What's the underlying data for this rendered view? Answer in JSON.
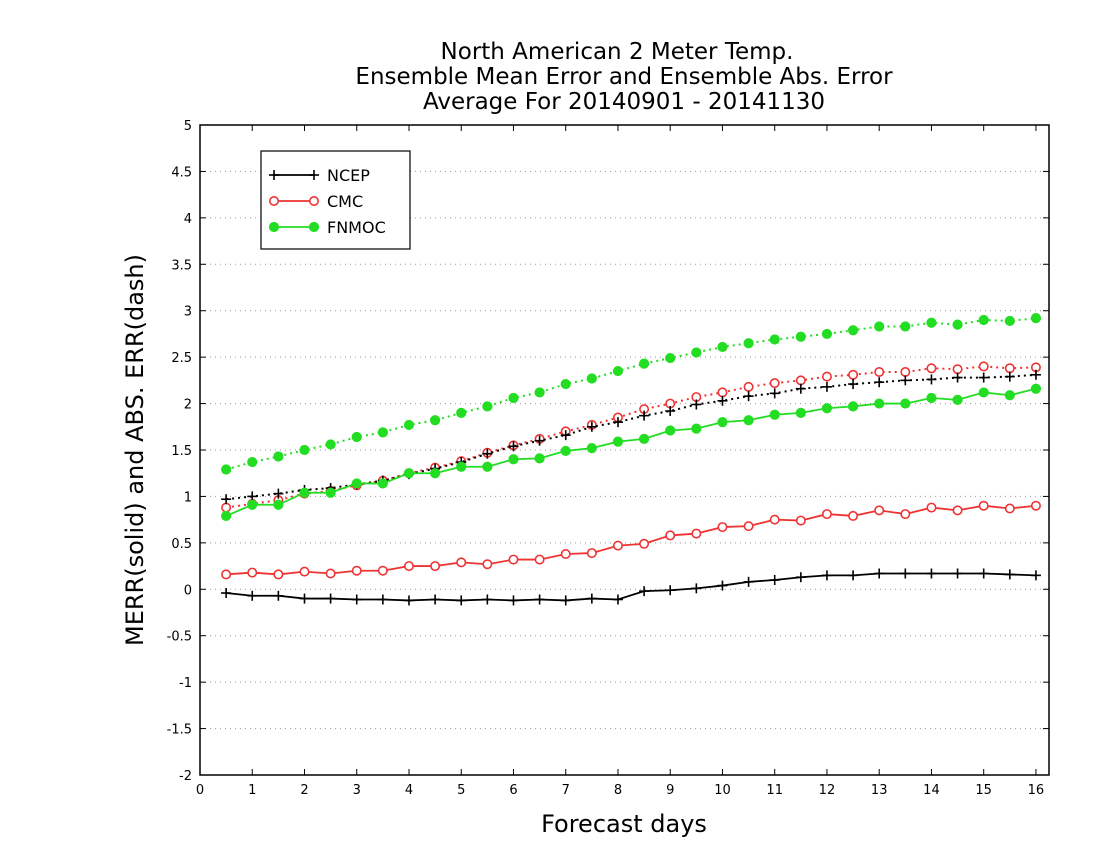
{
  "chart_data": {
    "type": "line",
    "title_lines": [
      "North American 2 Meter Temp.",
      "Ensemble Mean Error and Ensemble Abs. Error",
      "Average For 20140901 - 20141130"
    ],
    "xlabel": "Forecast days",
    "ylabel": "MERR(solid) and ABS. ERR(dash)",
    "xlim": [
      0,
      16.25
    ],
    "ylim": [
      -2,
      5
    ],
    "x_ticks": [
      0,
      1,
      2,
      3,
      4,
      5,
      6,
      7,
      8,
      9,
      10,
      11,
      12,
      13,
      14,
      15,
      16
    ],
    "y_ticks": [
      -2,
      -1.5,
      -1,
      -0.5,
      0,
      0.5,
      1,
      1.5,
      2,
      2.5,
      3,
      3.5,
      4,
      4.5,
      5
    ],
    "y_tick_labels": [
      "-2",
      "-1.5",
      "-1",
      "-0.5",
      "0",
      "0.5",
      "1",
      "1.5",
      "2",
      "2.5",
      "3",
      "3.5",
      "4",
      "4.5",
      "5"
    ],
    "grid": "horizontal dotted",
    "legend_position": "top-left",
    "x": [
      0.5,
      1,
      1.5,
      2,
      2.5,
      3,
      3.5,
      4,
      4.5,
      5,
      5.5,
      6,
      6.5,
      7,
      7.5,
      8,
      8.5,
      9,
      9.5,
      10,
      10.5,
      11,
      11.5,
      12,
      12.5,
      13,
      13.5,
      14,
      14.5,
      15,
      15.5,
      16
    ],
    "models": [
      {
        "name": "NCEP",
        "color": "#000000",
        "marker": "plus",
        "merr": [
          -0.04,
          -0.07,
          -0.07,
          -0.1,
          -0.1,
          -0.11,
          -0.11,
          -0.12,
          -0.11,
          -0.12,
          -0.11,
          -0.12,
          -0.11,
          -0.12,
          -0.1,
          -0.11,
          -0.02,
          -0.01,
          0.01,
          0.04,
          0.08,
          0.1,
          0.13,
          0.15,
          0.15,
          0.17,
          0.17,
          0.17,
          0.17,
          0.17,
          0.16,
          0.15
        ],
        "abs_err": [
          0.97,
          1.0,
          1.03,
          1.07,
          1.09,
          1.13,
          1.17,
          1.24,
          1.3,
          1.37,
          1.46,
          1.54,
          1.6,
          1.66,
          1.75,
          1.8,
          1.87,
          1.92,
          1.99,
          2.03,
          2.08,
          2.11,
          2.16,
          2.18,
          2.21,
          2.23,
          2.25,
          2.26,
          2.28,
          2.28,
          2.29,
          2.31
        ]
      },
      {
        "name": "CMC",
        "color": "#ee3333",
        "marker": "open-circle",
        "merr": [
          0.16,
          0.18,
          0.16,
          0.19,
          0.17,
          0.2,
          0.2,
          0.25,
          0.25,
          0.29,
          0.27,
          0.32,
          0.32,
          0.38,
          0.39,
          0.47,
          0.49,
          0.58,
          0.6,
          0.67,
          0.68,
          0.75,
          0.74,
          0.81,
          0.79,
          0.85,
          0.81,
          0.88,
          0.85,
          0.9,
          0.87,
          0.9
        ],
        "abs_err": [
          0.88,
          0.92,
          0.96,
          1.03,
          1.06,
          1.12,
          1.17,
          1.25,
          1.31,
          1.38,
          1.47,
          1.55,
          1.62,
          1.7,
          1.77,
          1.85,
          1.94,
          2.0,
          2.07,
          2.12,
          2.18,
          2.22,
          2.25,
          2.29,
          2.31,
          2.34,
          2.34,
          2.38,
          2.37,
          2.4,
          2.38,
          2.39
        ]
      },
      {
        "name": "FNMOC",
        "color": "#22dd22",
        "marker": "filled-circle",
        "merr": [
          0.79,
          0.91,
          0.91,
          1.04,
          1.04,
          1.14,
          1.14,
          1.25,
          1.25,
          1.32,
          1.32,
          1.4,
          1.41,
          1.49,
          1.52,
          1.59,
          1.62,
          1.71,
          1.73,
          1.8,
          1.82,
          1.88,
          1.9,
          1.95,
          1.97,
          2.0,
          2.0,
          2.06,
          2.04,
          2.12,
          2.09,
          2.16
        ],
        "abs_err": [
          1.29,
          1.37,
          1.43,
          1.5,
          1.56,
          1.64,
          1.69,
          1.77,
          1.82,
          1.9,
          1.97,
          2.06,
          2.12,
          2.21,
          2.27,
          2.35,
          2.43,
          2.49,
          2.55,
          2.61,
          2.65,
          2.69,
          2.72,
          2.75,
          2.79,
          2.83,
          2.83,
          2.87,
          2.85,
          2.9,
          2.89,
          2.92
        ]
      }
    ]
  }
}
